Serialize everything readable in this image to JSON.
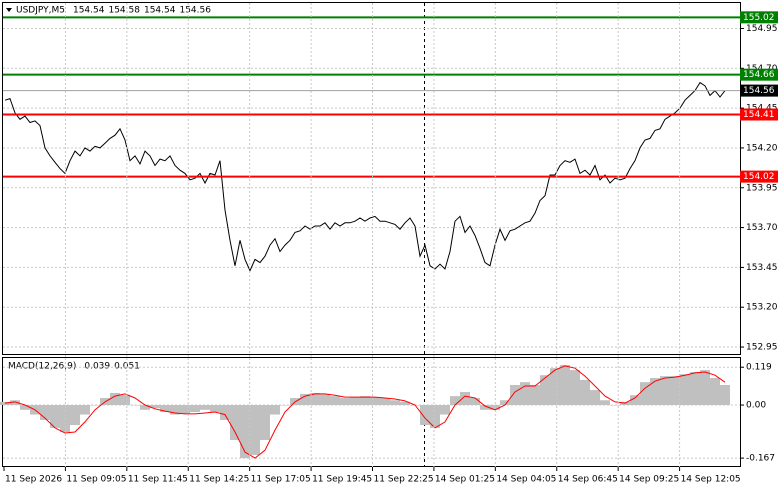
{
  "chart_data": [
    {
      "type": "line",
      "title": "USDJPY,M5",
      "ohlc": [
        154.54,
        154.58,
        154.54,
        154.56
      ],
      "color": "#000000",
      "values": [
        154.5,
        154.51,
        154.42,
        154.38,
        154.4,
        154.36,
        154.37,
        154.34,
        154.2,
        154.15,
        154.11,
        154.07,
        154.04,
        154.12,
        154.18,
        154.15,
        154.2,
        154.18,
        154.21,
        154.2,
        154.23,
        154.26,
        154.28,
        154.32,
        154.25,
        154.12,
        154.15,
        154.1,
        154.18,
        154.15,
        154.09,
        154.13,
        154.12,
        154.15,
        154.09,
        154.06,
        154.04,
        154.0,
        154.01,
        154.04,
        153.98,
        154.04,
        154.03,
        154.12,
        153.81,
        153.62,
        153.46,
        153.62,
        153.5,
        153.43,
        153.5,
        153.48,
        153.52,
        153.59,
        153.63,
        153.55,
        153.59,
        153.62,
        153.67,
        153.68,
        153.71,
        153.69,
        153.71,
        153.71,
        153.73,
        153.69,
        153.73,
        153.71,
        153.73,
        153.73,
        153.74,
        153.76,
        153.74,
        153.76,
        153.77,
        153.74,
        153.74,
        153.73,
        153.72,
        153.69,
        153.73,
        153.76,
        153.71,
        153.52,
        153.59,
        153.46,
        153.44,
        153.47,
        153.44,
        153.55,
        153.74,
        153.77,
        153.67,
        153.71,
        153.65,
        153.57,
        153.48,
        153.46,
        153.59,
        153.69,
        153.62,
        153.68,
        153.69,
        153.71,
        153.73,
        153.74,
        153.79,
        153.87,
        153.9,
        154.03,
        154.03,
        154.09,
        154.12,
        154.11,
        154.13,
        154.04,
        154.06,
        154.03,
        154.09,
        154.0,
        154.03,
        153.98,
        154.01,
        154.0,
        154.01,
        154.07,
        154.12,
        154.2,
        154.25,
        154.26,
        154.31,
        154.32,
        154.38,
        154.4,
        154.42,
        154.45,
        154.5,
        154.53,
        154.56,
        154.61,
        154.59,
        154.53,
        154.56,
        154.52,
        154.56
      ],
      "ylim": [
        152.9,
        155.11
      ],
      "yticks": [
        154.95,
        {
          "value": 154.7,
          "label": "154.70"
        },
        154.45,
        {
          "value": 154.2,
          "label": "154.20"
        },
        153.95,
        {
          "value": 153.7,
          "label": "153.70"
        },
        153.45,
        {
          "value": 153.2,
          "label": "153.20"
        },
        152.95
      ],
      "levels": [
        {
          "value": 155.02,
          "color": "#008000"
        },
        {
          "value": 154.66,
          "color": "#008000"
        },
        {
          "value": 154.41,
          "color": "#ff0000"
        },
        {
          "value": 154.02,
          "color": "#ff0000"
        }
      ],
      "current": 154.56,
      "grid": true
    },
    {
      "type": "bar",
      "title": "MACD(12,26,9)",
      "title_values": [
        0.039,
        0.051
      ],
      "series": [
        {
          "type": "bar",
          "color": "#c0c0c0",
          "values": [
            0.01,
            0.015,
            -0.015,
            -0.03,
            -0.047,
            -0.072,
            -0.085,
            -0.063,
            -0.03,
            0,
            0.022,
            0.038,
            0.031,
            0,
            -0.015,
            -0.01,
            -0.022,
            -0.03,
            -0.028,
            -0.022,
            -0.015,
            -0.022,
            -0.047,
            -0.11,
            -0.167,
            -0.157,
            -0.11,
            -0.03,
            0,
            0.022,
            0.035,
            0.038,
            0.035,
            0.028,
            0.022,
            0.025,
            0.028,
            0.025,
            0.022,
            0.015,
            0.01,
            0,
            -0.063,
            -0.072,
            -0.03,
            0.028,
            0.041,
            0.022,
            -0.015,
            -0.015,
            0.015,
            0.063,
            0.072,
            0.063,
            0.094,
            0.116,
            0.126,
            0.11,
            0.079,
            0.047,
            0.015,
            0,
            0.01,
            0.031,
            0.072,
            0.085,
            0.091,
            0.091,
            0.097,
            0.104,
            0.11,
            0.085,
            0.063
          ]
        },
        {
          "type": "line",
          "color": "#ff0000",
          "values": [
            0.006,
            0.01,
            0,
            -0.015,
            -0.041,
            -0.072,
            -0.088,
            -0.085,
            -0.053,
            -0.015,
            0.01,
            0.028,
            0.035,
            0.022,
            0,
            -0.012,
            -0.019,
            -0.025,
            -0.028,
            -0.028,
            -0.025,
            -0.022,
            -0.03,
            -0.085,
            -0.148,
            -0.167,
            -0.142,
            -0.079,
            -0.022,
            0.01,
            0.028,
            0.035,
            0.035,
            0.031,
            0.025,
            0.025,
            0.025,
            0.025,
            0.022,
            0.019,
            0.013,
            0,
            -0.041,
            -0.072,
            -0.053,
            0,
            0.028,
            0.022,
            -0.003,
            -0.015,
            0,
            0.041,
            0.06,
            0.06,
            0.085,
            0.11,
            0.123,
            0.116,
            0.091,
            0.06,
            0.028,
            0.01,
            0.006,
            0.022,
            0.053,
            0.075,
            0.085,
            0.088,
            0.094,
            0.101,
            0.104,
            0.094,
            0.072
          ]
        }
      ],
      "ylim": [
        -0.195,
        0.148
      ],
      "yticks": [
        0.119,
        {
          "value": 0,
          "label": "0.00"
        },
        -0.167
      ],
      "xtick_labels": [
        "11 Sep 2026",
        "11 Sep 09:05",
        "11 Sep 11:45",
        "11 Sep 14:25",
        "11 Sep 17:05",
        "11 Sep 19:45",
        "11 Sep 22:25",
        "14 Sep 01:25",
        "14 Sep 04:05",
        "14 Sep 06:45",
        "14 Sep 09:25",
        "14 Sep 12:05"
      ],
      "grid": true
    }
  ]
}
